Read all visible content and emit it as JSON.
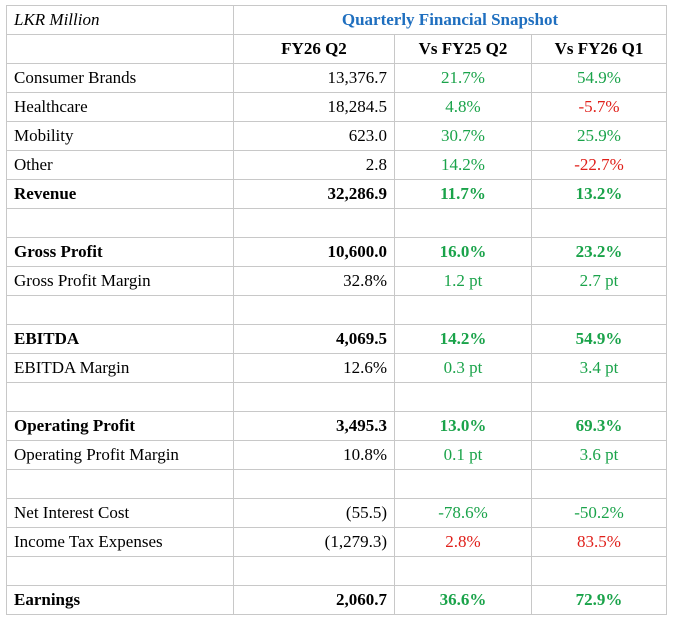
{
  "colors": {
    "positive": "#1aa34a",
    "negative": "#e0201b",
    "title": "#1f6fbf"
  },
  "header": {
    "unit": "LKR Million",
    "title": "Quarterly Financial Snapshot",
    "col1": "FY26 Q2",
    "col2": "Vs FY25 Q2",
    "col3": "Vs FY26 Q1"
  },
  "rows": {
    "consumer": {
      "label": "Consumer Brands",
      "value": "13,376.7",
      "yoy": "21.7%",
      "qoq": "54.9%"
    },
    "healthcare": {
      "label": "Healthcare",
      "value": "18,284.5",
      "yoy": "4.8%",
      "qoq": "-5.7%"
    },
    "mobility": {
      "label": "Mobility",
      "value": "623.0",
      "yoy": "30.7%",
      "qoq": "25.9%"
    },
    "other": {
      "label": "Other",
      "value": "2.8",
      "yoy": "14.2%",
      "qoq": "-22.7%"
    },
    "revenue": {
      "label": "Revenue",
      "value": "32,286.9",
      "yoy": "11.7%",
      "qoq": "13.2%"
    },
    "gross_profit": {
      "label": "Gross Profit",
      "value": "10,600.0",
      "yoy": "16.0%",
      "qoq": "23.2%"
    },
    "gp_margin": {
      "label": "Gross Profit Margin",
      "value": "32.8%",
      "yoy": "1.2 pt",
      "qoq": "2.7 pt"
    },
    "ebitda": {
      "label": "EBITDA",
      "value": "4,069.5",
      "yoy": "14.2%",
      "qoq": "54.9%"
    },
    "ebitda_margin": {
      "label": "EBITDA Margin",
      "value": "12.6%",
      "yoy": "0.3 pt",
      "qoq": "3.4 pt"
    },
    "op_profit": {
      "label": "Operating Profit",
      "value": "3,495.3",
      "yoy": "13.0%",
      "qoq": "69.3%"
    },
    "op_margin": {
      "label": "Operating Profit Margin",
      "value": "10.8%",
      "yoy": "0.1 pt",
      "qoq": "3.6 pt"
    },
    "net_interest": {
      "label": "Net Interest Cost",
      "value": "(55.5)",
      "yoy": "-78.6%",
      "qoq": "-50.2%"
    },
    "income_tax": {
      "label": "Income Tax Expenses",
      "value": "(1,279.3)",
      "yoy": "2.8%",
      "qoq": "83.5%"
    },
    "earnings": {
      "label": "Earnings",
      "value": "2,060.7",
      "yoy": "36.6%",
      "qoq": "72.9%"
    }
  }
}
